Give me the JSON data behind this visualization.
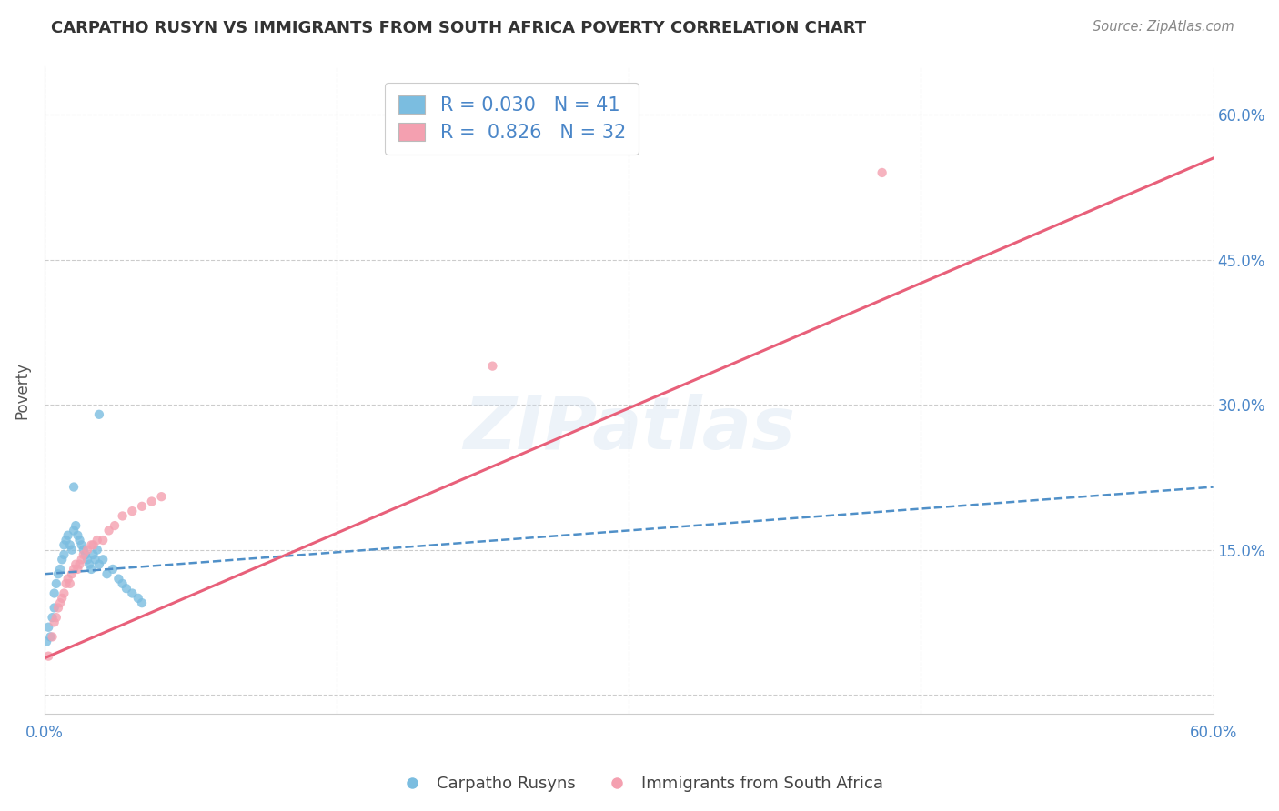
{
  "title": "CARPATHO RUSYN VS IMMIGRANTS FROM SOUTH AFRICA POVERTY CORRELATION CHART",
  "source": "Source: ZipAtlas.com",
  "ylabel": "Poverty",
  "xlim": [
    0.0,
    0.6
  ],
  "ylim": [
    -0.02,
    0.65
  ],
  "yticks": [
    0.0,
    0.15,
    0.3,
    0.45,
    0.6
  ],
  "ytick_labels": [
    "",
    "15.0%",
    "30.0%",
    "45.0%",
    "60.0%"
  ],
  "xticks": [
    0.0,
    0.15,
    0.3,
    0.45,
    0.6
  ],
  "blue_color": "#7bbde0",
  "pink_color": "#f4a0b0",
  "blue_line_color": "#5090c8",
  "pink_line_color": "#e8607a",
  "R_blue": 0.03,
  "N_blue": 41,
  "R_pink": 0.826,
  "N_pink": 32,
  "legend_label_blue": "Carpatho Rusyns",
  "legend_label_pink": "Immigrants from South Africa",
  "watermark": "ZIPatlas",
  "blue_scatter_x": [
    0.001,
    0.002,
    0.003,
    0.004,
    0.005,
    0.005,
    0.006,
    0.007,
    0.008,
    0.009,
    0.01,
    0.01,
    0.011,
    0.012,
    0.013,
    0.014,
    0.015,
    0.016,
    0.017,
    0.018,
    0.019,
    0.02,
    0.021,
    0.022,
    0.023,
    0.024,
    0.025,
    0.026,
    0.027,
    0.028,
    0.03,
    0.032,
    0.035,
    0.038,
    0.04,
    0.042,
    0.045,
    0.048,
    0.05,
    0.028,
    0.015
  ],
  "blue_scatter_y": [
    0.055,
    0.07,
    0.06,
    0.08,
    0.09,
    0.105,
    0.115,
    0.125,
    0.13,
    0.14,
    0.145,
    0.155,
    0.16,
    0.165,
    0.155,
    0.15,
    0.17,
    0.175,
    0.165,
    0.16,
    0.155,
    0.15,
    0.145,
    0.14,
    0.135,
    0.13,
    0.145,
    0.14,
    0.15,
    0.135,
    0.14,
    0.125,
    0.13,
    0.12,
    0.115,
    0.11,
    0.105,
    0.1,
    0.095,
    0.29,
    0.215
  ],
  "pink_scatter_x": [
    0.002,
    0.004,
    0.005,
    0.006,
    0.007,
    0.008,
    0.009,
    0.01,
    0.011,
    0.012,
    0.013,
    0.014,
    0.015,
    0.016,
    0.017,
    0.018,
    0.019,
    0.02,
    0.022,
    0.024,
    0.025,
    0.027,
    0.03,
    0.033,
    0.036,
    0.04,
    0.045,
    0.05,
    0.055,
    0.06,
    0.23,
    0.43
  ],
  "pink_scatter_y": [
    0.04,
    0.06,
    0.075,
    0.08,
    0.09,
    0.095,
    0.1,
    0.105,
    0.115,
    0.12,
    0.115,
    0.125,
    0.13,
    0.135,
    0.13,
    0.135,
    0.14,
    0.145,
    0.15,
    0.155,
    0.155,
    0.16,
    0.16,
    0.17,
    0.175,
    0.185,
    0.19,
    0.195,
    0.2,
    0.205,
    0.34,
    0.54
  ],
  "blue_line_x": [
    0.0,
    0.6
  ],
  "blue_line_y": [
    0.125,
    0.215
  ],
  "pink_line_x": [
    0.0,
    0.6
  ],
  "pink_line_y": [
    0.038,
    0.555
  ],
  "grid_color": "#cccccc",
  "background_color": "#ffffff",
  "title_color": "#333333",
  "axis_label_color": "#555555",
  "tick_color": "#4a86c8",
  "source_color": "#888888"
}
